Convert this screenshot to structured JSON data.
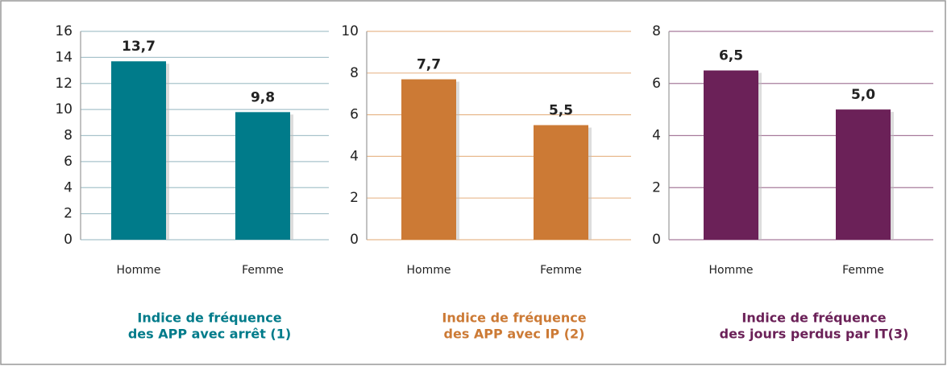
{
  "chart_data": [
    {
      "type": "bar",
      "title": [
        "Indice de fréquence",
        "des APP avec arrêt (1)"
      ],
      "categories": [
        "Homme",
        "Femme"
      ],
      "values": [
        13.7,
        9.8
      ],
      "value_labels": [
        "13,7",
        "9,8"
      ],
      "color": "#007b8a",
      "grid_color": "#a9c4cc",
      "ylim": [
        0,
        16
      ],
      "yticks": [
        0,
        2,
        4,
        6,
        8,
        10,
        12,
        14,
        16
      ],
      "grid": true
    },
    {
      "type": "bar",
      "title": [
        "Indice de fréquence",
        "des APP avec IP (2)"
      ],
      "categories": [
        "Homme",
        "Femme"
      ],
      "values": [
        7.7,
        5.5
      ],
      "value_labels": [
        "7,7",
        "5,5"
      ],
      "color": "#cc7a35",
      "grid_color": "#e8b98e",
      "ylim": [
        0,
        10
      ],
      "yticks": [
        0,
        2,
        4,
        6,
        8,
        10
      ],
      "grid": true
    },
    {
      "type": "bar",
      "title": [
        "Indice de fréquence",
        "des jours perdus par IT(3)"
      ],
      "categories": [
        "Homme",
        "Femme"
      ],
      "values": [
        6.5,
        5.0
      ],
      "value_labels": [
        "6,5",
        "5,0"
      ],
      "color": "#6b2158",
      "grid_color": "#a77b9c",
      "ylim": [
        0,
        8
      ],
      "yticks": [
        0,
        2,
        4,
        6,
        8
      ],
      "grid": true
    }
  ]
}
